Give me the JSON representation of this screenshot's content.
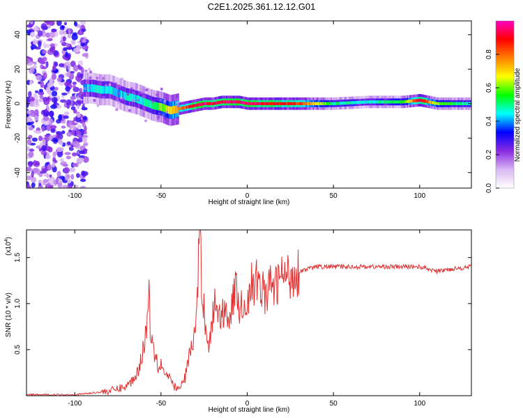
{
  "figure": {
    "title": "C2E1.2025.361.12.12.G01"
  },
  "chart_data": [
    {
      "type": "heatmap",
      "xlabel": "Height of straight line (km)",
      "ylabel": "Frequency (Hz)",
      "xlim": [
        -128,
        130
      ],
      "ylim": [
        -49,
        48
      ],
      "xticks": [
        -100,
        -50,
        0,
        50,
        100
      ],
      "yticks": [
        -40,
        -20,
        0,
        20,
        40
      ],
      "grid": false,
      "colorbar": {
        "label": "Normalized spectral amplitude",
        "range": [
          0,
          1
        ],
        "ticks": [
          "0.0",
          "0.2",
          "0.4",
          "0.6",
          "0.8"
        ],
        "colors": [
          "#ffffff",
          "#d9b8f2",
          "#8a2be2",
          "#0000ff",
          "#00ffff",
          "#00ff00",
          "#ffff00",
          "#ff8000",
          "#ff0000",
          "#ff00c0"
        ]
      },
      "ridge": {
        "x": [
          -95,
          -90,
          -85,
          -80,
          -75,
          -70,
          -65,
          -60,
          -55,
          -50,
          -45,
          -40,
          -35,
          -30,
          -25,
          -20,
          -15,
          -10,
          -5,
          0,
          10,
          30,
          50,
          70,
          90,
          100,
          110,
          130
        ],
        "y": [
          9,
          9,
          8,
          8,
          6,
          4,
          3,
          1,
          -1,
          -2,
          -4,
          -3,
          -2,
          -1,
          0,
          0,
          1,
          1,
          1,
          0,
          0,
          0,
          0,
          1,
          1,
          2,
          0,
          0
        ],
        "amplitude": [
          0.4,
          0.45,
          0.45,
          0.45,
          0.4,
          0.45,
          0.45,
          0.45,
          0.5,
          0.6,
          0.7,
          0.75,
          0.85,
          0.95,
          0.95,
          0.9,
          0.95,
          0.95,
          0.95,
          0.95,
          0.9,
          0.85,
          0.5,
          0.45,
          0.55,
          0.95,
          0.6,
          0.45
        ]
      },
      "noise_region": {
        "xlim": [
          -128,
          -93
        ],
        "amplitude": 0.25
      }
    },
    {
      "type": "line",
      "xlabel": "Height of straight line (km)",
      "ylabel": "SNR (10 * v/v)",
      "yscale_label": "(x10",
      "yscale_exp": "4",
      "xlim": [
        -128,
        130
      ],
      "ylim": [
        0,
        1.8
      ],
      "xticks": [
        -100,
        -50,
        0,
        50,
        100
      ],
      "yticks": [
        "0.5",
        "1.0",
        "1.5"
      ],
      "grid": false,
      "series": [
        {
          "color": "#e03030",
          "x": [
            -128,
            -100,
            -90,
            -80,
            -70,
            -65,
            -62,
            -60,
            -58,
            -57,
            -56,
            -55,
            -54,
            -53,
            -52,
            -50,
            -48,
            -46,
            -44,
            -42,
            -40,
            -38,
            -36,
            -34,
            -32,
            -30,
            -29,
            -28,
            -27,
            -26,
            -25,
            -24,
            -22,
            -20,
            -18,
            -16,
            -14,
            -12,
            -10,
            -8,
            -6,
            -4,
            -2,
            0,
            2,
            4,
            6,
            8,
            10,
            12,
            14,
            16,
            18,
            20,
            22,
            25,
            30,
            40,
            60,
            80,
            100,
            110,
            120,
            130
          ],
          "y": [
            0.01,
            0.01,
            0.03,
            0.05,
            0.1,
            0.2,
            0.35,
            0.55,
            0.8,
            1.2,
            0.6,
            0.7,
            0.45,
            0.55,
            0.3,
            0.35,
            0.25,
            0.2,
            0.15,
            0.1,
            0.06,
            0.12,
            0.2,
            0.4,
            0.55,
            0.7,
            1.05,
            1.55,
            1.65,
            1.0,
            0.95,
            0.75,
            0.55,
            0.85,
            1.05,
            0.85,
            0.9,
            0.95,
            0.85,
            1.05,
            1.2,
            0.9,
            1.05,
            0.95,
            1.25,
            1.1,
            1.3,
            1.2,
            1.1,
            1.1,
            1.25,
            1.15,
            1.25,
            1.3,
            1.3,
            1.3,
            1.35,
            1.4,
            1.4,
            1.4,
            1.4,
            1.35,
            1.38,
            1.4
          ]
        }
      ]
    }
  ]
}
